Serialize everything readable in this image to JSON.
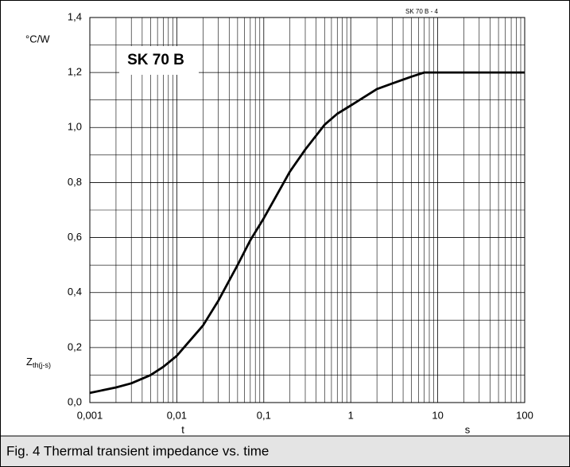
{
  "chart_data": {
    "type": "line",
    "title": "SK 70 B",
    "corner_label": "SK 70 B   - 4",
    "y_unit": "°C/W",
    "y_label": {
      "main": "Z",
      "sub": "th(j-s)"
    },
    "x_label": "t",
    "x_unit": "s",
    "caption": "Fig. 4 Thermal transient impedance vs. time",
    "xscale": "log",
    "grid": true,
    "xlim": [
      0.001,
      100
    ],
    "xticks": [
      {
        "value": 0.001,
        "label": "0,001"
      },
      {
        "value": 0.01,
        "label": "0,01"
      },
      {
        "value": 0.1,
        "label": "0,1"
      },
      1,
      10,
      100
    ],
    "ylim": [
      0,
      1.4
    ],
    "yticks": [
      {
        "value": 0,
        "label": "0,0"
      },
      {
        "value": 0.2,
        "label": "0,2"
      },
      {
        "value": 0.4,
        "label": "0,4"
      },
      {
        "value": 0.6,
        "label": "0,6"
      },
      {
        "value": 0.8,
        "label": "0,8"
      },
      {
        "value": 1.0,
        "label": "1,0"
      },
      {
        "value": 1.2,
        "label": "1,2"
      },
      {
        "value": 1.4,
        "label": "1,4"
      }
    ],
    "color": "#000000",
    "x": [
      0.001,
      0.002,
      0.003,
      0.005,
      0.007,
      0.01,
      0.02,
      0.03,
      0.05,
      0.07,
      0.1,
      0.2,
      0.3,
      0.5,
      0.7,
      1,
      2,
      3,
      5,
      7,
      10,
      100
    ],
    "values": [
      0.035,
      0.055,
      0.07,
      0.1,
      0.13,
      0.17,
      0.28,
      0.37,
      0.5,
      0.59,
      0.67,
      0.84,
      0.92,
      1.01,
      1.05,
      1.08,
      1.14,
      1.16,
      1.185,
      1.2,
      1.2,
      1.2
    ]
  }
}
